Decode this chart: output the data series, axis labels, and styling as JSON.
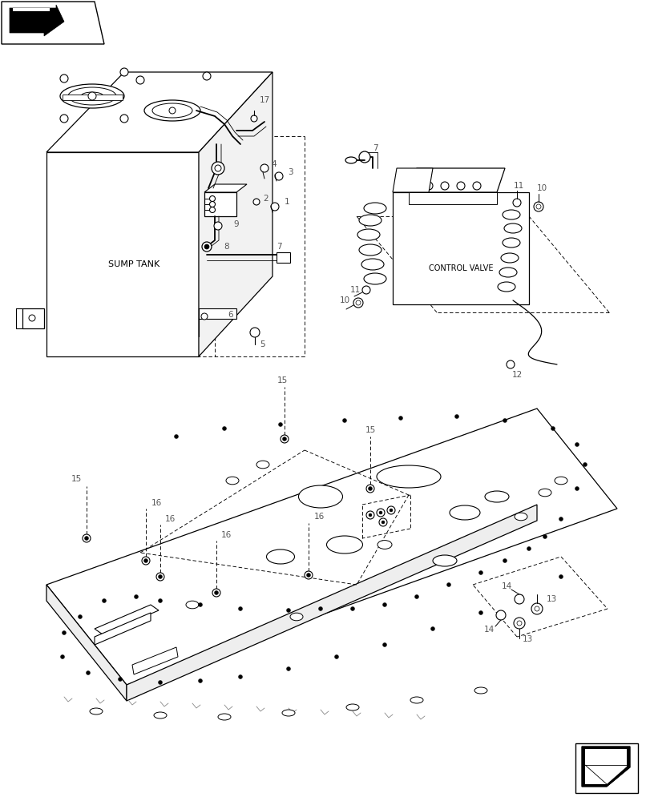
{
  "bg_color": "#ffffff",
  "line_color": "#000000",
  "sump_tank_label": "SUMP TANK",
  "control_valve_label": "CONTROL VALVE",
  "figsize": [
    8.12,
    10.0
  ],
  "dpi": 100,
  "xlim": [
    0,
    812
  ],
  "ylim": [
    0,
    1000
  ]
}
